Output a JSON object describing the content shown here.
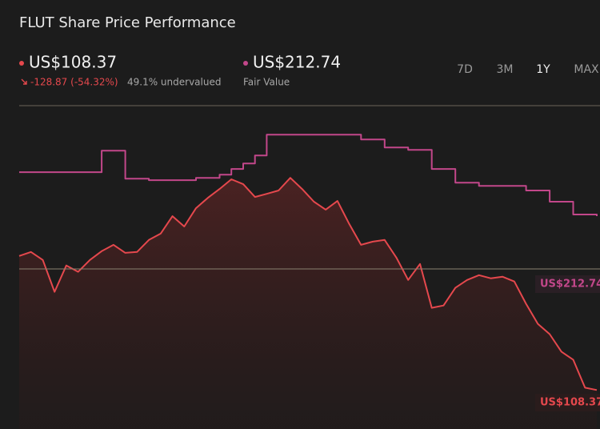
{
  "chart_data": {
    "type": "line",
    "title": "FLUT Share Price Performance",
    "summary": {
      "price": "US$108.37",
      "change": "-128.87 (-54.32%)",
      "valuation": "49.1% undervalued",
      "fair_value": "US$212.74",
      "fair_value_caption": "Fair Value"
    },
    "ranges": [
      "7D",
      "3M",
      "1Y",
      "MAX"
    ],
    "selected_range": "1Y",
    "ylim": [
      85,
      279
    ],
    "series": [
      {
        "name": "Share Price",
        "color": "#e5484d",
        "step": false,
        "values": [
          188.8,
          191.2,
          186.4,
          167.3,
          183.1,
          179.3,
          186.4,
          191.7,
          195.5,
          190.7,
          191.2,
          198.4,
          202.2,
          212.7,
          206.5,
          217.5,
          223.7,
          229.0,
          234.8,
          231.9,
          224.2,
          226.1,
          228.1,
          235.7,
          229.0,
          221.4,
          216.6,
          221.8,
          208.0,
          195.5,
          197.4,
          198.4,
          187.8,
          174.4,
          184.0,
          157.7,
          159.1,
          169.7,
          174.4,
          177.3,
          175.4,
          176.4,
          173.5,
          160.1,
          148.1,
          141.9,
          131.4,
          126.6,
          109.8,
          108.37
        ]
      },
      {
        "name": "Fair Value",
        "color": "#c2478a",
        "step": true,
        "values": [
          239.1,
          239.1,
          239.1,
          239.1,
          239.1,
          239.1,
          239.1,
          252.0,
          252.0,
          235.2,
          235.2,
          234.3,
          234.3,
          234.3,
          234.3,
          235.7,
          235.7,
          237.6,
          241.0,
          244.3,
          249.1,
          261.6,
          261.6,
          261.6,
          261.6,
          261.6,
          261.6,
          261.6,
          261.6,
          258.7,
          258.7,
          253.9,
          253.9,
          252.5,
          252.5,
          241.0,
          241.0,
          232.8,
          232.8,
          230.9,
          230.9,
          230.9,
          230.9,
          228.1,
          228.1,
          221.4,
          221.4,
          213.7,
          213.7,
          212.74
        ]
      }
    ]
  }
}
